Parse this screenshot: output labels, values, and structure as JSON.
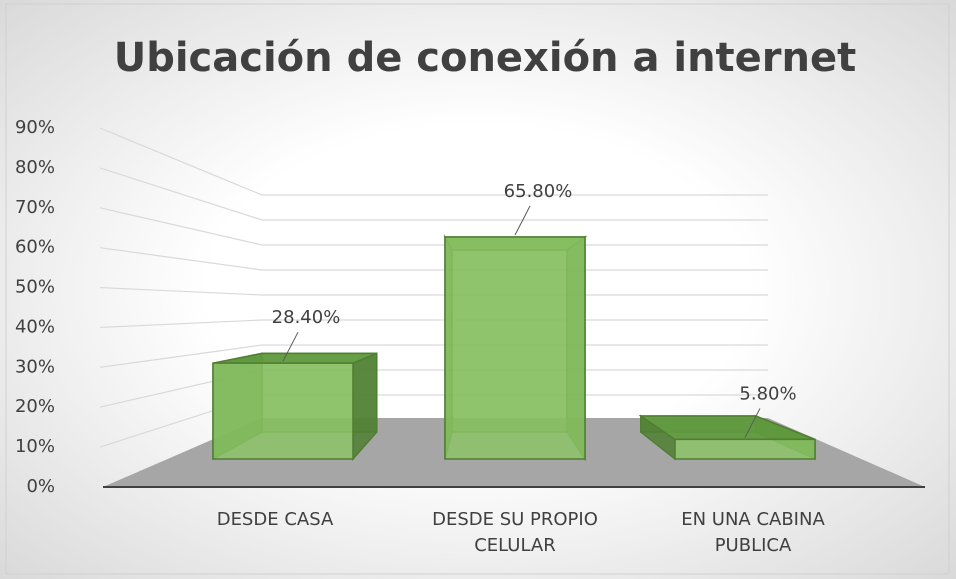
{
  "chart_data": {
    "type": "bar3d",
    "title": "Ubicación de conexión a internet",
    "categories": [
      "DESDE CASA",
      "DESDE SU PROPIO CELULAR",
      "EN UNA CABINA PUBLICA"
    ],
    "values": [
      28.4,
      65.8,
      5.8
    ],
    "value_labels": [
      "28.40%",
      "65.80%",
      "5.80%"
    ],
    "color": "#70ad47",
    "ylim": [
      0,
      90
    ],
    "yticks": [
      {
        "value": 0,
        "label": "0%"
      },
      {
        "value": 10,
        "label": "10%"
      },
      {
        "value": 20,
        "label": "20%"
      },
      {
        "value": 30,
        "label": "30%"
      },
      {
        "value": 40,
        "label": "40%"
      },
      {
        "value": 50,
        "label": "50%"
      },
      {
        "value": 60,
        "label": "60%"
      },
      {
        "value": 70,
        "label": "70%"
      },
      {
        "value": 80,
        "label": "80%"
      },
      {
        "value": 90,
        "label": "90%"
      }
    ],
    "grid": true
  }
}
